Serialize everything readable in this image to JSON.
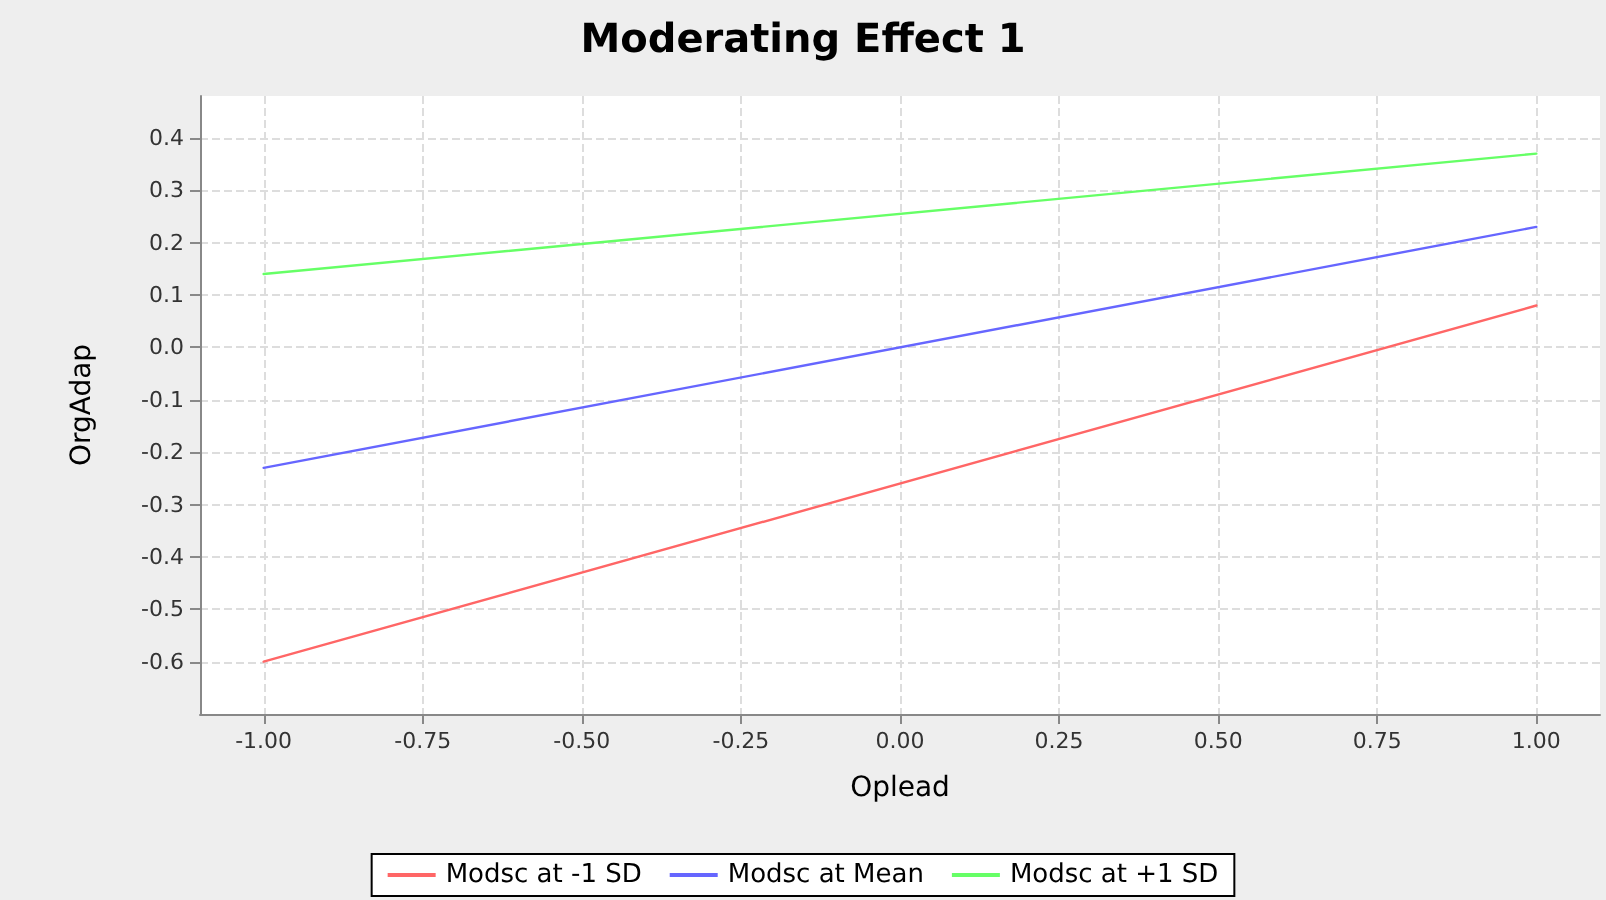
{
  "chart_data": {
    "type": "line",
    "title": "Moderating Effect 1",
    "xlabel": "Oplead",
    "ylabel": "OrgAdap",
    "x": [
      -1,
      1
    ],
    "series": [
      {
        "name": "Modsc at -1 SD",
        "color": "#ff6666",
        "values": [
          -0.6,
          0.08
        ]
      },
      {
        "name": "Modsc at Mean",
        "color": "#6666ff",
        "values": [
          -0.23,
          0.23
        ]
      },
      {
        "name": "Modsc at +1 SD",
        "color": "#66ff66",
        "values": [
          0.14,
          0.37
        ]
      }
    ],
    "xlim": [
      -1.1,
      1.1
    ],
    "xticks": [
      {
        "value": -1,
        "label": "-1.00"
      },
      {
        "value": -0.75,
        "label": "-0.75"
      },
      {
        "value": -0.5,
        "label": "-0.50"
      },
      {
        "value": -0.25,
        "label": "-0.25"
      },
      {
        "value": 0,
        "label": "0.00"
      },
      {
        "value": 0.25,
        "label": "0.25"
      },
      {
        "value": 0.5,
        "label": "0.50"
      },
      {
        "value": 0.75,
        "label": "0.75"
      },
      {
        "value": 1,
        "label": "1.00"
      }
    ],
    "ylim": [
      -0.7,
      0.48
    ],
    "yticks": [
      -0.6,
      -0.5,
      -0.4,
      -0.3,
      -0.2,
      -0.1,
      {
        "value": 0,
        "label": "0.0"
      },
      0.1,
      0.2,
      0.3,
      0.4
    ],
    "grid": true,
    "legend": "bottom",
    "marker": "none",
    "line_style": "solid"
  }
}
